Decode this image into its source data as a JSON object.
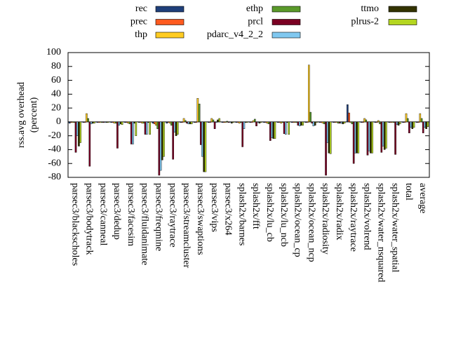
{
  "chart_data": {
    "type": "bar",
    "ylabel": [
      "rss.avg overhead",
      "(percent)"
    ],
    "ylim": [
      -80,
      100
    ],
    "yticks": [
      -80,
      -60,
      -40,
      -20,
      0,
      20,
      40,
      60,
      80,
      100
    ],
    "categories": [
      "parsec3/blackscholes",
      "parsec3/bodytrack",
      "parsec3/canneal",
      "parsec3/dedup",
      "parsec3/facesim",
      "parsec3/fluidanimate",
      "parsec3/freqmine",
      "parsec3/raytrace",
      "parsec3/streamcluster",
      "parsec3/swaptions",
      "parsec3/vips",
      "parsec3/x264",
      "splash2x/barnes",
      "splash2x/fft",
      "splash2x/lu_cb",
      "splash2x/lu_ncb",
      "splash2x/ocean_cp",
      "splash2x/ocean_ncp",
      "splash2x/radiosity",
      "splash2x/radix",
      "splash2x/raytrace",
      "splash2x/volrend",
      "splash2x/water_nsquared",
      "splash2x/water_spatial",
      "total",
      "average"
    ],
    "series": [
      {
        "name": "rec",
        "color": "#1f3f7a",
        "values": [
          -2,
          -1,
          -1,
          -1,
          -1,
          -1,
          -2,
          -2,
          -1,
          -1,
          -1,
          -1,
          -1,
          -1,
          -1,
          -1,
          -1,
          -1,
          -1,
          -1,
          25,
          -1,
          -1,
          -1,
          -1,
          -1
        ]
      },
      {
        "name": "prec",
        "color": "#ff5a1f",
        "values": [
          -1,
          -1,
          -1,
          -1,
          -1,
          -1,
          -3,
          -1,
          -1,
          -1,
          -1,
          -1,
          -1,
          -1,
          -1,
          -1,
          -1,
          -1,
          -1,
          -1,
          13,
          -1,
          -1,
          -1,
          -1,
          -1
        ]
      },
      {
        "name": "thp",
        "color": "#ffcc22",
        "values": [
          -1,
          12,
          -1,
          -2,
          -2,
          -2,
          -5,
          -2,
          5,
          34,
          5,
          -1,
          -2,
          2,
          -2,
          -2,
          -1,
          82,
          -2,
          -1,
          -1,
          5,
          2,
          -1,
          12,
          12
        ]
      },
      {
        "name": "ethp",
        "color": "#5a9a2a",
        "values": [
          -1,
          5,
          -1,
          -2,
          -3,
          -2,
          -10,
          -5,
          2,
          26,
          3,
          1,
          -1,
          4,
          -3,
          -1,
          -1,
          14,
          -3,
          -2,
          -3,
          3,
          -3,
          -1,
          5,
          5
        ]
      },
      {
        "name": "prcl",
        "color": "#7a0022",
        "values": [
          -44,
          -64,
          -1,
          -38,
          -32,
          -18,
          -77,
          -54,
          -2,
          -33,
          -10,
          -1,
          -36,
          -6,
          -27,
          -17,
          -5,
          -2,
          -77,
          -2,
          -60,
          -48,
          -44,
          -47,
          -16,
          -16
        ]
      },
      {
        "name": "pdarc_v4_2_2",
        "color": "#80c8f0",
        "values": [
          -20,
          -3,
          -1,
          -5,
          -32,
          -18,
          -70,
          -15,
          -3,
          -50,
          -1,
          -1,
          -10,
          -1,
          -23,
          -18,
          -6,
          -6,
          -30,
          -2,
          -45,
          -42,
          -35,
          -4,
          -8,
          -8
        ]
      },
      {
        "name": "ttmo",
        "color": "#333300",
        "values": [
          -35,
          -2,
          -1,
          -3,
          -2,
          -1,
          -55,
          -20,
          -3,
          -72,
          3,
          -2,
          -1,
          -2,
          -24,
          -1,
          -5,
          -5,
          -45,
          -3,
          -45,
          -45,
          -40,
          -5,
          -10,
          -10
        ]
      },
      {
        "name": "plrus-2",
        "color": "#b4d620",
        "values": [
          -30,
          -2,
          -1,
          -4,
          -20,
          -18,
          -50,
          -18,
          -3,
          -72,
          5,
          -1,
          -1,
          -1,
          -24,
          -18,
          -5,
          -1,
          -46,
          -2,
          -45,
          -45,
          -38,
          -3,
          -8,
          -7
        ]
      }
    ]
  }
}
